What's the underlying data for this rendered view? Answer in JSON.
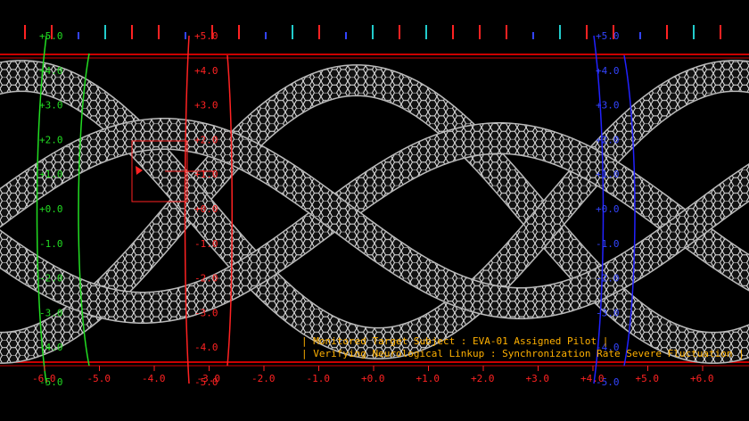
{
  "colors": {
    "background": "#000000",
    "frame": "#cc0000",
    "green": "#22dd22",
    "red": "#ff2222",
    "blue": "#2222ff",
    "cable_fill": "#1a1a1a",
    "cable_mesh": "#e8e8e8",
    "status_text": "#ffb000"
  },
  "top_ticks": [
    "red",
    "red",
    "blue",
    "cyan",
    "red",
    "red",
    "blue",
    "red",
    "red",
    "blue",
    "cyan",
    "red",
    "blue",
    "cyan",
    "red",
    "cyan",
    "red",
    "red",
    "red",
    "blue",
    "cyan",
    "red",
    "red",
    "blue",
    "red",
    "cyan",
    "red"
  ],
  "green_scale": {
    "labels": [
      "+5.0",
      "+4.0",
      "+3.0",
      "+2.0",
      "+1.0",
      "+0.0",
      "-1.0",
      "-2.0",
      "-3.0",
      "-4.0",
      "-5.0"
    ]
  },
  "red_scale": {
    "labels": [
      "+5.0",
      "+4.0",
      "+3.0",
      "+2.0",
      "+1.0",
      "+0.0",
      "-1.0",
      "-2.0",
      "-3.0",
      "-4.0",
      "-5.0"
    ]
  },
  "blue_scale": {
    "labels": [
      "+5.0",
      "+4.0",
      "+3.0",
      "+2.0",
      "+1.0",
      "+0.0",
      "-1.0",
      "-2.0",
      "-3.0",
      "-4.0",
      "-5.0"
    ]
  },
  "bottom_axis": {
    "labels": [
      "-6.0",
      "-5.0",
      "-4.0",
      "-3.0",
      "-2.0",
      "-1.0",
      "+0.0",
      "+1.0",
      "+2.0",
      "+3.0",
      "+4.0",
      "+5.0",
      "+6.0"
    ]
  },
  "status": {
    "line1": "| Monitored Target Subject :  EVA-01 Assigned Pilot |",
    "line2": "| Verifying Neurological Linkup :  Synchronization Rate Severe Fluctuation |"
  }
}
